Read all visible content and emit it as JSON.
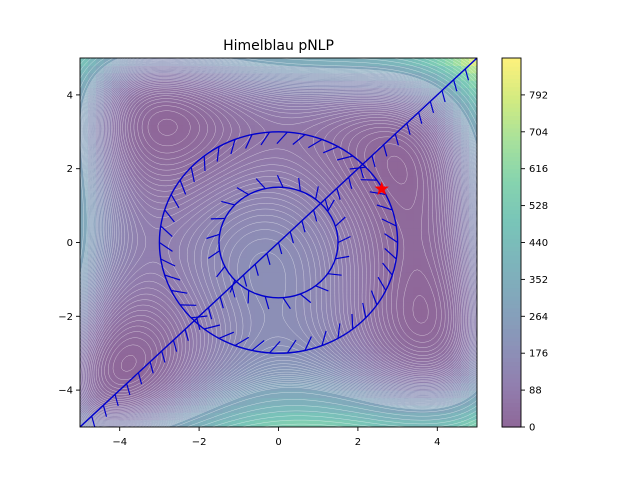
{
  "chart_data": {
    "type": "contour",
    "title": "Himelblau pNLP",
    "xlabel": "",
    "ylabel": "",
    "xlim": [
      -5,
      5
    ],
    "ylim": [
      -5,
      5
    ],
    "x_ticks": [
      -4,
      -2,
      0,
      2,
      4
    ],
    "y_ticks": [
      -4,
      -2,
      0,
      2,
      4
    ],
    "colorbar": {
      "min": 0,
      "max": 880,
      "ticks": [
        0,
        88,
        176,
        264,
        352,
        440,
        528,
        616,
        704,
        792
      ],
      "colormap": "viridis"
    },
    "constraints": [
      {
        "name": "line",
        "type": "line",
        "points": [
          [
            -5,
            -5
          ],
          [
            5,
            5
          ]
        ]
      },
      {
        "name": "inner circle",
        "type": "circle",
        "center": [
          0,
          0
        ],
        "radius": 1.5
      },
      {
        "name": "outer circle",
        "type": "circle",
        "center": [
          0,
          0
        ],
        "radius": 3
      }
    ],
    "optimum": {
      "x": 2.6,
      "y": 1.45
    },
    "colors": {
      "constraint": "#0000cd",
      "optimum": "#ff0000"
    }
  }
}
